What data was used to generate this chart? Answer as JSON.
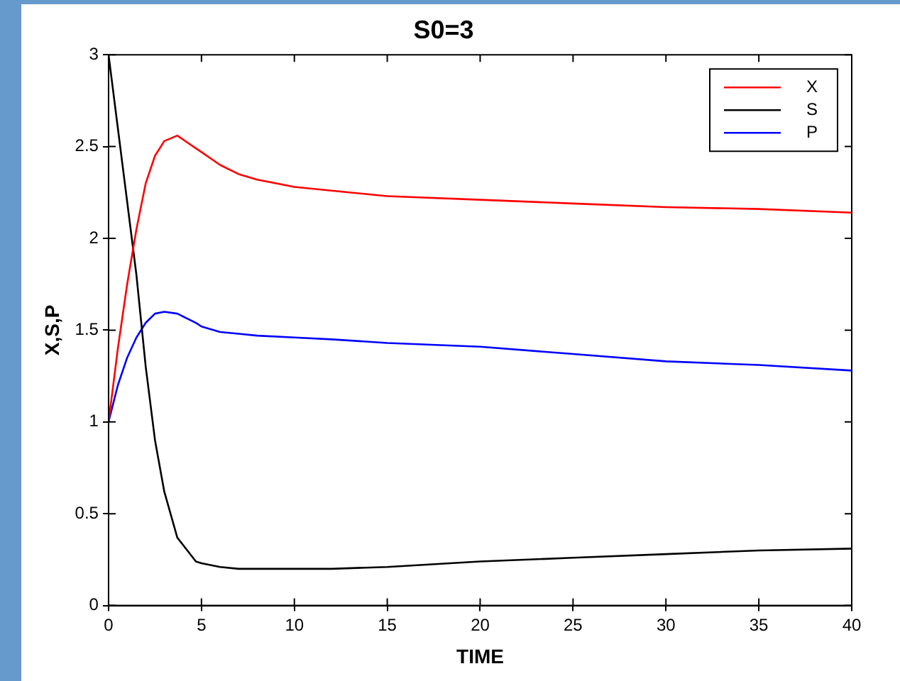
{
  "chart_data": {
    "type": "line",
    "title": "S0=3",
    "xlabel": "TIME",
    "ylabel": "X,S,P",
    "x": [
      0,
      0.5,
      1,
      1.5,
      2,
      2.5,
      3,
      3.7,
      4.7,
      5,
      6,
      7,
      8,
      10,
      12,
      15,
      20,
      25,
      30,
      35,
      40
    ],
    "series": [
      {
        "name": "X",
        "color": "#ff0000",
        "values": [
          1,
          1.4,
          1.75,
          2.05,
          2.3,
          2.45,
          2.53,
          2.56,
          2.49,
          2.47,
          2.4,
          2.35,
          2.32,
          2.28,
          2.26,
          2.23,
          2.21,
          2.19,
          2.17,
          2.16,
          2.14
        ]
      },
      {
        "name": "S",
        "color": "#000000",
        "values": [
          3,
          2.6,
          2.2,
          1.8,
          1.3,
          0.9,
          0.62,
          0.37,
          0.24,
          0.23,
          0.21,
          0.2,
          0.2,
          0.2,
          0.2,
          0.21,
          0.24,
          0.26,
          0.28,
          0.3,
          0.31
        ]
      },
      {
        "name": "P",
        "color": "#0000ff",
        "values": [
          1,
          1.2,
          1.35,
          1.46,
          1.54,
          1.59,
          1.6,
          1.59,
          1.54,
          1.52,
          1.49,
          1.48,
          1.47,
          1.46,
          1.45,
          1.43,
          1.41,
          1.37,
          1.33,
          1.31,
          1.28
        ]
      }
    ],
    "xlim": [
      0,
      40
    ],
    "xticks": [
      0,
      5,
      10,
      15,
      20,
      25,
      30,
      35,
      40
    ],
    "ylim": [
      0,
      3
    ],
    "yticks": [
      0,
      0.5,
      1,
      1.5,
      2,
      2.5,
      3
    ],
    "grid": false,
    "legend": "top right",
    "marker": "none",
    "line_style": "solid"
  }
}
